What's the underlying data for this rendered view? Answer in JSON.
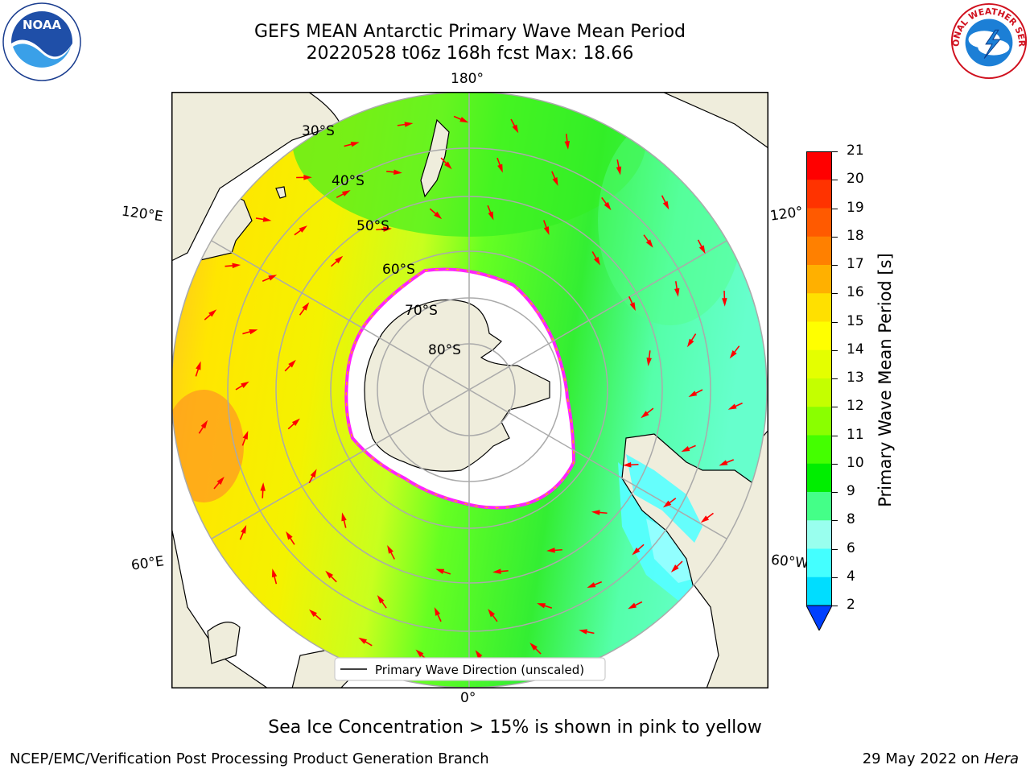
{
  "header": {
    "title_line1": "GEFS MEAN Antarctic Primary Wave Mean Period",
    "title_line2": "20220528 t06z 168h fcst   Max: 18.66"
  },
  "logos": {
    "noaa": "NOAA",
    "nws": "NATIONAL WEATHER SERVICE"
  },
  "map": {
    "lon_labels": {
      "top": "180°",
      "bottom": "0°",
      "left_upper": "120°E",
      "left_lower": "60°E",
      "right_upper": "120°",
      "right_lower": "60°W"
    },
    "lat_labels": [
      "30°S",
      "40°S",
      "50°S",
      "60°S",
      "70°S",
      "80°S"
    ],
    "legend_label": "Primary Wave Direction (unscaled)",
    "arrow_color": "#ff0000",
    "land_color": "#efeddc"
  },
  "colorbar": {
    "label": "Primary Wave Mean Period [s]",
    "ticks": [
      "21",
      "20",
      "19",
      "18",
      "17",
      "16",
      "15",
      "14",
      "13",
      "12",
      "11",
      "10",
      "9",
      "8",
      "6",
      "4",
      "2"
    ],
    "colors_top_to_bottom": [
      "#ff0000",
      "#ff3300",
      "#ff5a00",
      "#ff8000",
      "#ffb000",
      "#ffe000",
      "#ffff00",
      "#e4ff00",
      "#c4ff00",
      "#8aff00",
      "#44ff00",
      "#00ee00",
      "#44ff88",
      "#99ffee",
      "#44ffff",
      "#00ddff",
      "#0088ff",
      "#0040ff"
    ]
  },
  "notes": {
    "ice": "Sea Ice Concentration > 15% is shown in pink to yellow"
  },
  "footer": {
    "left": "NCEP/EMC/Verification Post Processing Product Generation Branch",
    "date": "29 May 2022 on",
    "host": "Hera"
  }
}
